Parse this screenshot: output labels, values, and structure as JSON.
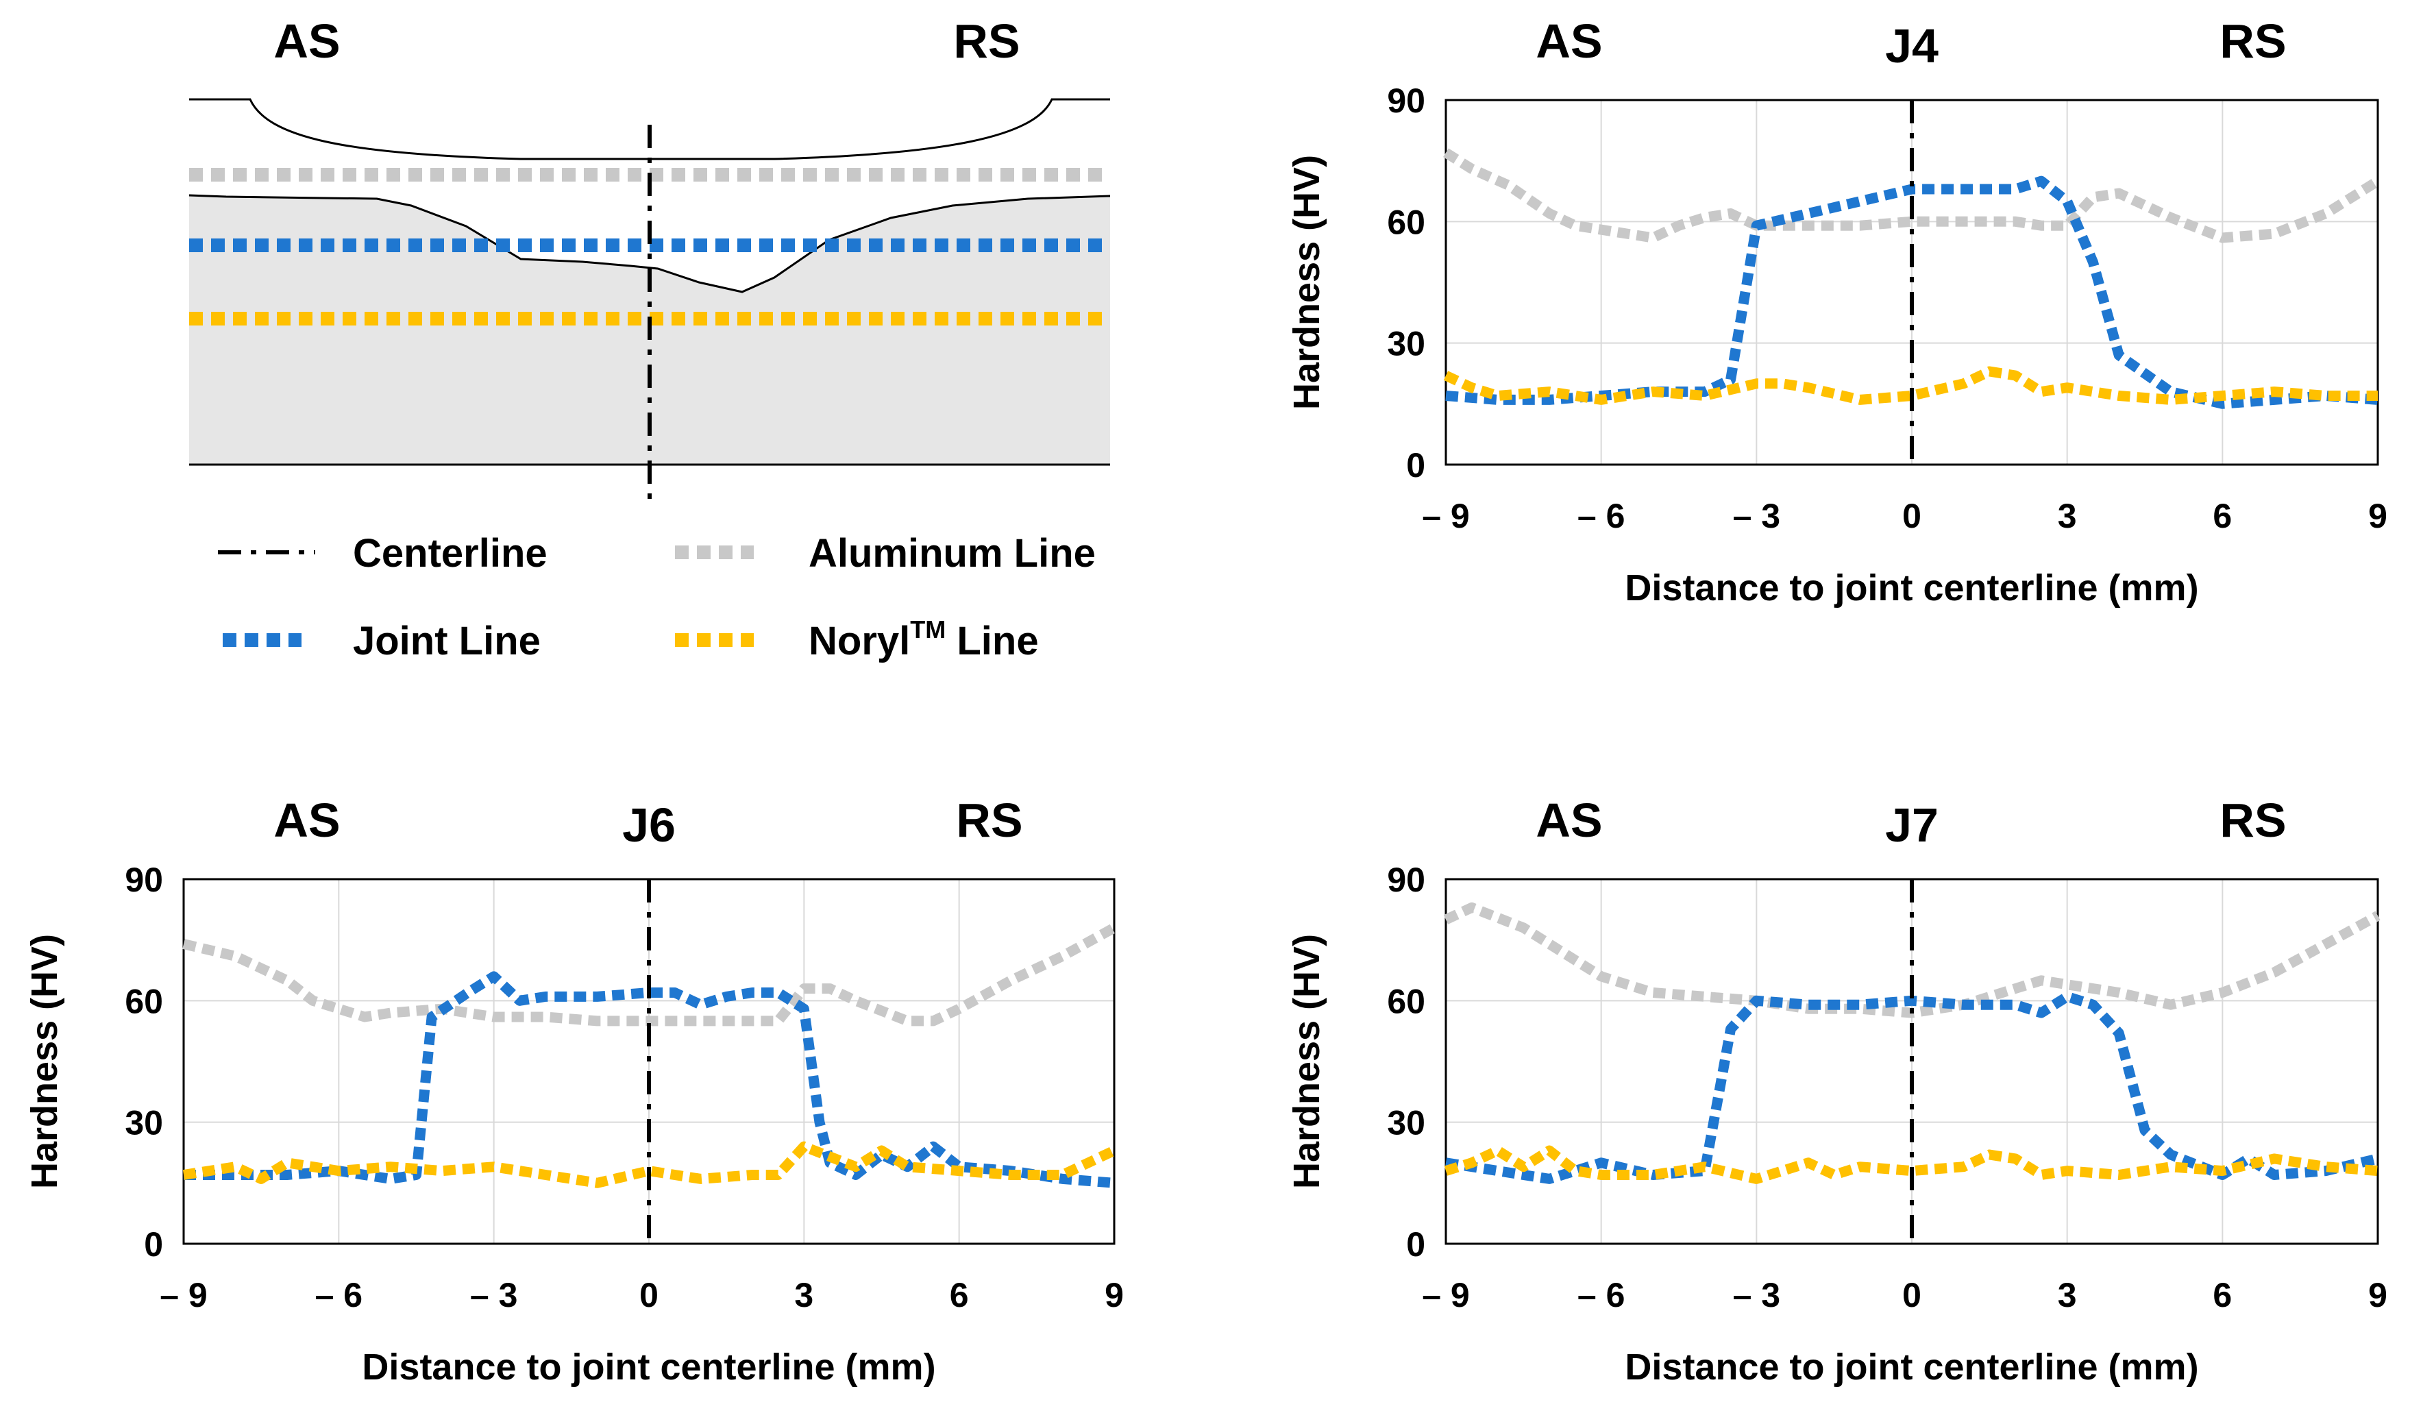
{
  "colors": {
    "aluminum": "#C8C8C8",
    "joint": "#1F77D0",
    "noryl": "#FFC000",
    "centerline": "#000000",
    "sheet_fill": "#E6E6E6",
    "grid": "#D9D9D9"
  },
  "schematic": {
    "side_left": "AS",
    "side_right": "RS"
  },
  "legend": {
    "centerline": "Centerline",
    "aluminum": "Aluminum Line",
    "joint": "Joint Line",
    "noryl_prefix": "Noryl",
    "noryl_sup": "TM",
    "noryl_suffix": " Line"
  },
  "chart_data": [
    {
      "type": "line",
      "title": "J4",
      "side_left": "AS",
      "side_right": "RS",
      "xlabel": "Distance to joint centerline (mm)",
      "ylabel": "Hardness (HV)",
      "xlim": [
        -9,
        9
      ],
      "ylim": [
        0,
        90
      ],
      "xticks": [
        -9,
        -6,
        -3,
        0,
        3,
        6,
        9
      ],
      "xtick_labels": [
        "– 9",
        "– 6",
        "– 3",
        "0",
        "3",
        "6",
        "9"
      ],
      "yticks": [
        0,
        30,
        60,
        90
      ],
      "ytick_labels": [
        "0",
        "30",
        "60",
        "90"
      ],
      "centerline_x": 0,
      "series": [
        {
          "name": "Aluminum Line",
          "x": [
            -9,
            -8.5,
            -7.8,
            -7,
            -6.5,
            -5.5,
            -5,
            -4.5,
            -4,
            -3.5,
            -3,
            -2,
            -1,
            0,
            1,
            2,
            2.5,
            3,
            3.5,
            4,
            5,
            6,
            7,
            8,
            9
          ],
          "values": [
            77,
            73,
            69,
            62,
            59,
            57,
            56,
            59,
            61,
            62,
            59,
            59,
            59,
            60,
            60,
            60,
            59,
            59,
            66,
            67,
            61,
            56,
            57,
            62,
            70
          ]
        },
        {
          "name": "Joint Line",
          "x": [
            -9,
            -8,
            -7,
            -6,
            -5,
            -4,
            -3.5,
            -3,
            -2,
            -1,
            0,
            1,
            2,
            2.5,
            3,
            3.5,
            4,
            5,
            6,
            7,
            8,
            9
          ],
          "values": [
            17,
            16,
            16,
            17,
            18,
            18,
            21,
            59,
            62,
            65,
            68,
            68,
            68,
            70,
            65,
            50,
            27,
            18,
            15,
            16,
            17,
            16
          ]
        },
        {
          "name": "Noryl Line",
          "x": [
            -9,
            -8.5,
            -8,
            -7,
            -6,
            -5,
            -4,
            -3,
            -2.5,
            -2,
            -1,
            0,
            1,
            1.5,
            2,
            2.5,
            3,
            4,
            5,
            6,
            7,
            8,
            9
          ],
          "values": [
            22,
            19,
            17,
            18,
            16,
            18,
            17,
            20,
            20,
            19,
            16,
            17,
            20,
            23,
            22,
            18,
            19,
            17,
            16,
            17,
            18,
            17,
            17
          ]
        }
      ]
    },
    {
      "type": "line",
      "title": "J6",
      "side_left": "AS",
      "side_right": "RS",
      "xlabel": "Distance to joint centerline (mm)",
      "ylabel": "Hardness (HV)",
      "xlim": [
        -9,
        9
      ],
      "ylim": [
        0,
        90
      ],
      "xticks": [
        -9,
        -6,
        -3,
        0,
        3,
        6,
        9
      ],
      "xtick_labels": [
        "– 9",
        "– 6",
        "– 3",
        "0",
        "3",
        "6",
        "9"
      ],
      "yticks": [
        0,
        30,
        60,
        90
      ],
      "ytick_labels": [
        "0",
        "30",
        "60",
        "90"
      ],
      "centerline_x": 0,
      "series": [
        {
          "name": "Aluminum Line",
          "x": [
            -9,
            -8,
            -7,
            -6.5,
            -5.5,
            -5,
            -4,
            -3,
            -2,
            -1,
            0,
            1,
            2,
            2.5,
            3,
            3.5,
            4,
            5,
            5.5,
            6,
            7,
            8,
            9
          ],
          "values": [
            74,
            71,
            65,
            60,
            56,
            57,
            58,
            56,
            56,
            55,
            55,
            55,
            55,
            55,
            63,
            63,
            60,
            55,
            55,
            58,
            65,
            71,
            78
          ]
        },
        {
          "name": "Joint Line",
          "x": [
            -9,
            -8,
            -7,
            -6,
            -5,
            -4.5,
            -4.2,
            -3.5,
            -3,
            -2.5,
            -2,
            -1,
            0,
            0.5,
            1,
            1.5,
            2,
            2.5,
            3,
            3.3,
            3.5,
            4,
            4.5,
            5,
            5.5,
            6,
            7,
            8,
            9
          ],
          "values": [
            17,
            17,
            17,
            18,
            16,
            17,
            56,
            62,
            66,
            60,
            61,
            61,
            62,
            62,
            59,
            61,
            62,
            62,
            58,
            30,
            20,
            17,
            22,
            19,
            24,
            19,
            18,
            16,
            15
          ]
        },
        {
          "name": "Noryl Line",
          "x": [
            -9,
            -8.5,
            -8,
            -7.5,
            -7,
            -6.5,
            -6,
            -5,
            -4,
            -3,
            -2,
            -1,
            0,
            0.5,
            1,
            2,
            2.5,
            3,
            4,
            4.5,
            5,
            6,
            7,
            8,
            9
          ],
          "values": [
            17,
            18,
            19,
            16,
            20,
            19,
            18,
            19,
            18,
            19,
            17,
            15,
            18,
            17,
            16,
            17,
            17,
            24,
            19,
            23,
            19,
            18,
            17,
            17,
            23
          ]
        }
      ]
    },
    {
      "type": "line",
      "title": "J7",
      "side_left": "AS",
      "side_right": "RS",
      "xlabel": "Distance to joint centerline (mm)",
      "ylabel": "Hardness (HV)",
      "xlim": [
        -9,
        9
      ],
      "ylim": [
        0,
        90
      ],
      "xticks": [
        -9,
        -6,
        -3,
        0,
        3,
        6,
        9
      ],
      "xtick_labels": [
        "– 9",
        "– 6",
        "– 3",
        "0",
        "3",
        "6",
        "9"
      ],
      "yticks": [
        0,
        30,
        60,
        90
      ],
      "ytick_labels": [
        "0",
        "30",
        "60",
        "90"
      ],
      "centerline_x": 0,
      "series": [
        {
          "name": "Aluminum Line",
          "x": [
            -9,
            -8.5,
            -7.5,
            -7,
            -6,
            -5,
            -4,
            -3,
            -2,
            -1,
            0,
            1,
            2,
            2.5,
            3,
            4,
            5,
            6,
            7,
            8,
            9
          ],
          "values": [
            80,
            83,
            78,
            74,
            66,
            62,
            61,
            60,
            58,
            58,
            57,
            59,
            63,
            65,
            64,
            62,
            59,
            62,
            67,
            74,
            81
          ]
        },
        {
          "name": "Joint Line",
          "x": [
            -9,
            -8,
            -7,
            -6,
            -5,
            -4,
            -3.5,
            -3,
            -2,
            -1,
            0,
            1,
            2,
            2.5,
            3,
            3.5,
            4,
            4.5,
            5,
            6,
            6.5,
            7,
            8,
            9
          ],
          "values": [
            20,
            18,
            16,
            20,
            17,
            18,
            53,
            60,
            59,
            59,
            60,
            59,
            59,
            57,
            61,
            59,
            52,
            28,
            22,
            17,
            21,
            17,
            18,
            21
          ]
        },
        {
          "name": "Noryl Line",
          "x": [
            -9,
            -8.5,
            -8,
            -7.5,
            -7,
            -6.5,
            -6,
            -5,
            -4,
            -3,
            -2,
            -1.5,
            -1,
            0,
            1,
            1.5,
            2,
            2.5,
            3,
            4,
            5,
            6,
            7,
            8,
            9
          ],
          "values": [
            18,
            20,
            23,
            19,
            23,
            18,
            17,
            17,
            19,
            16,
            20,
            17,
            19,
            18,
            19,
            22,
            21,
            17,
            18,
            17,
            19,
            18,
            21,
            19,
            18
          ]
        }
      ]
    }
  ]
}
